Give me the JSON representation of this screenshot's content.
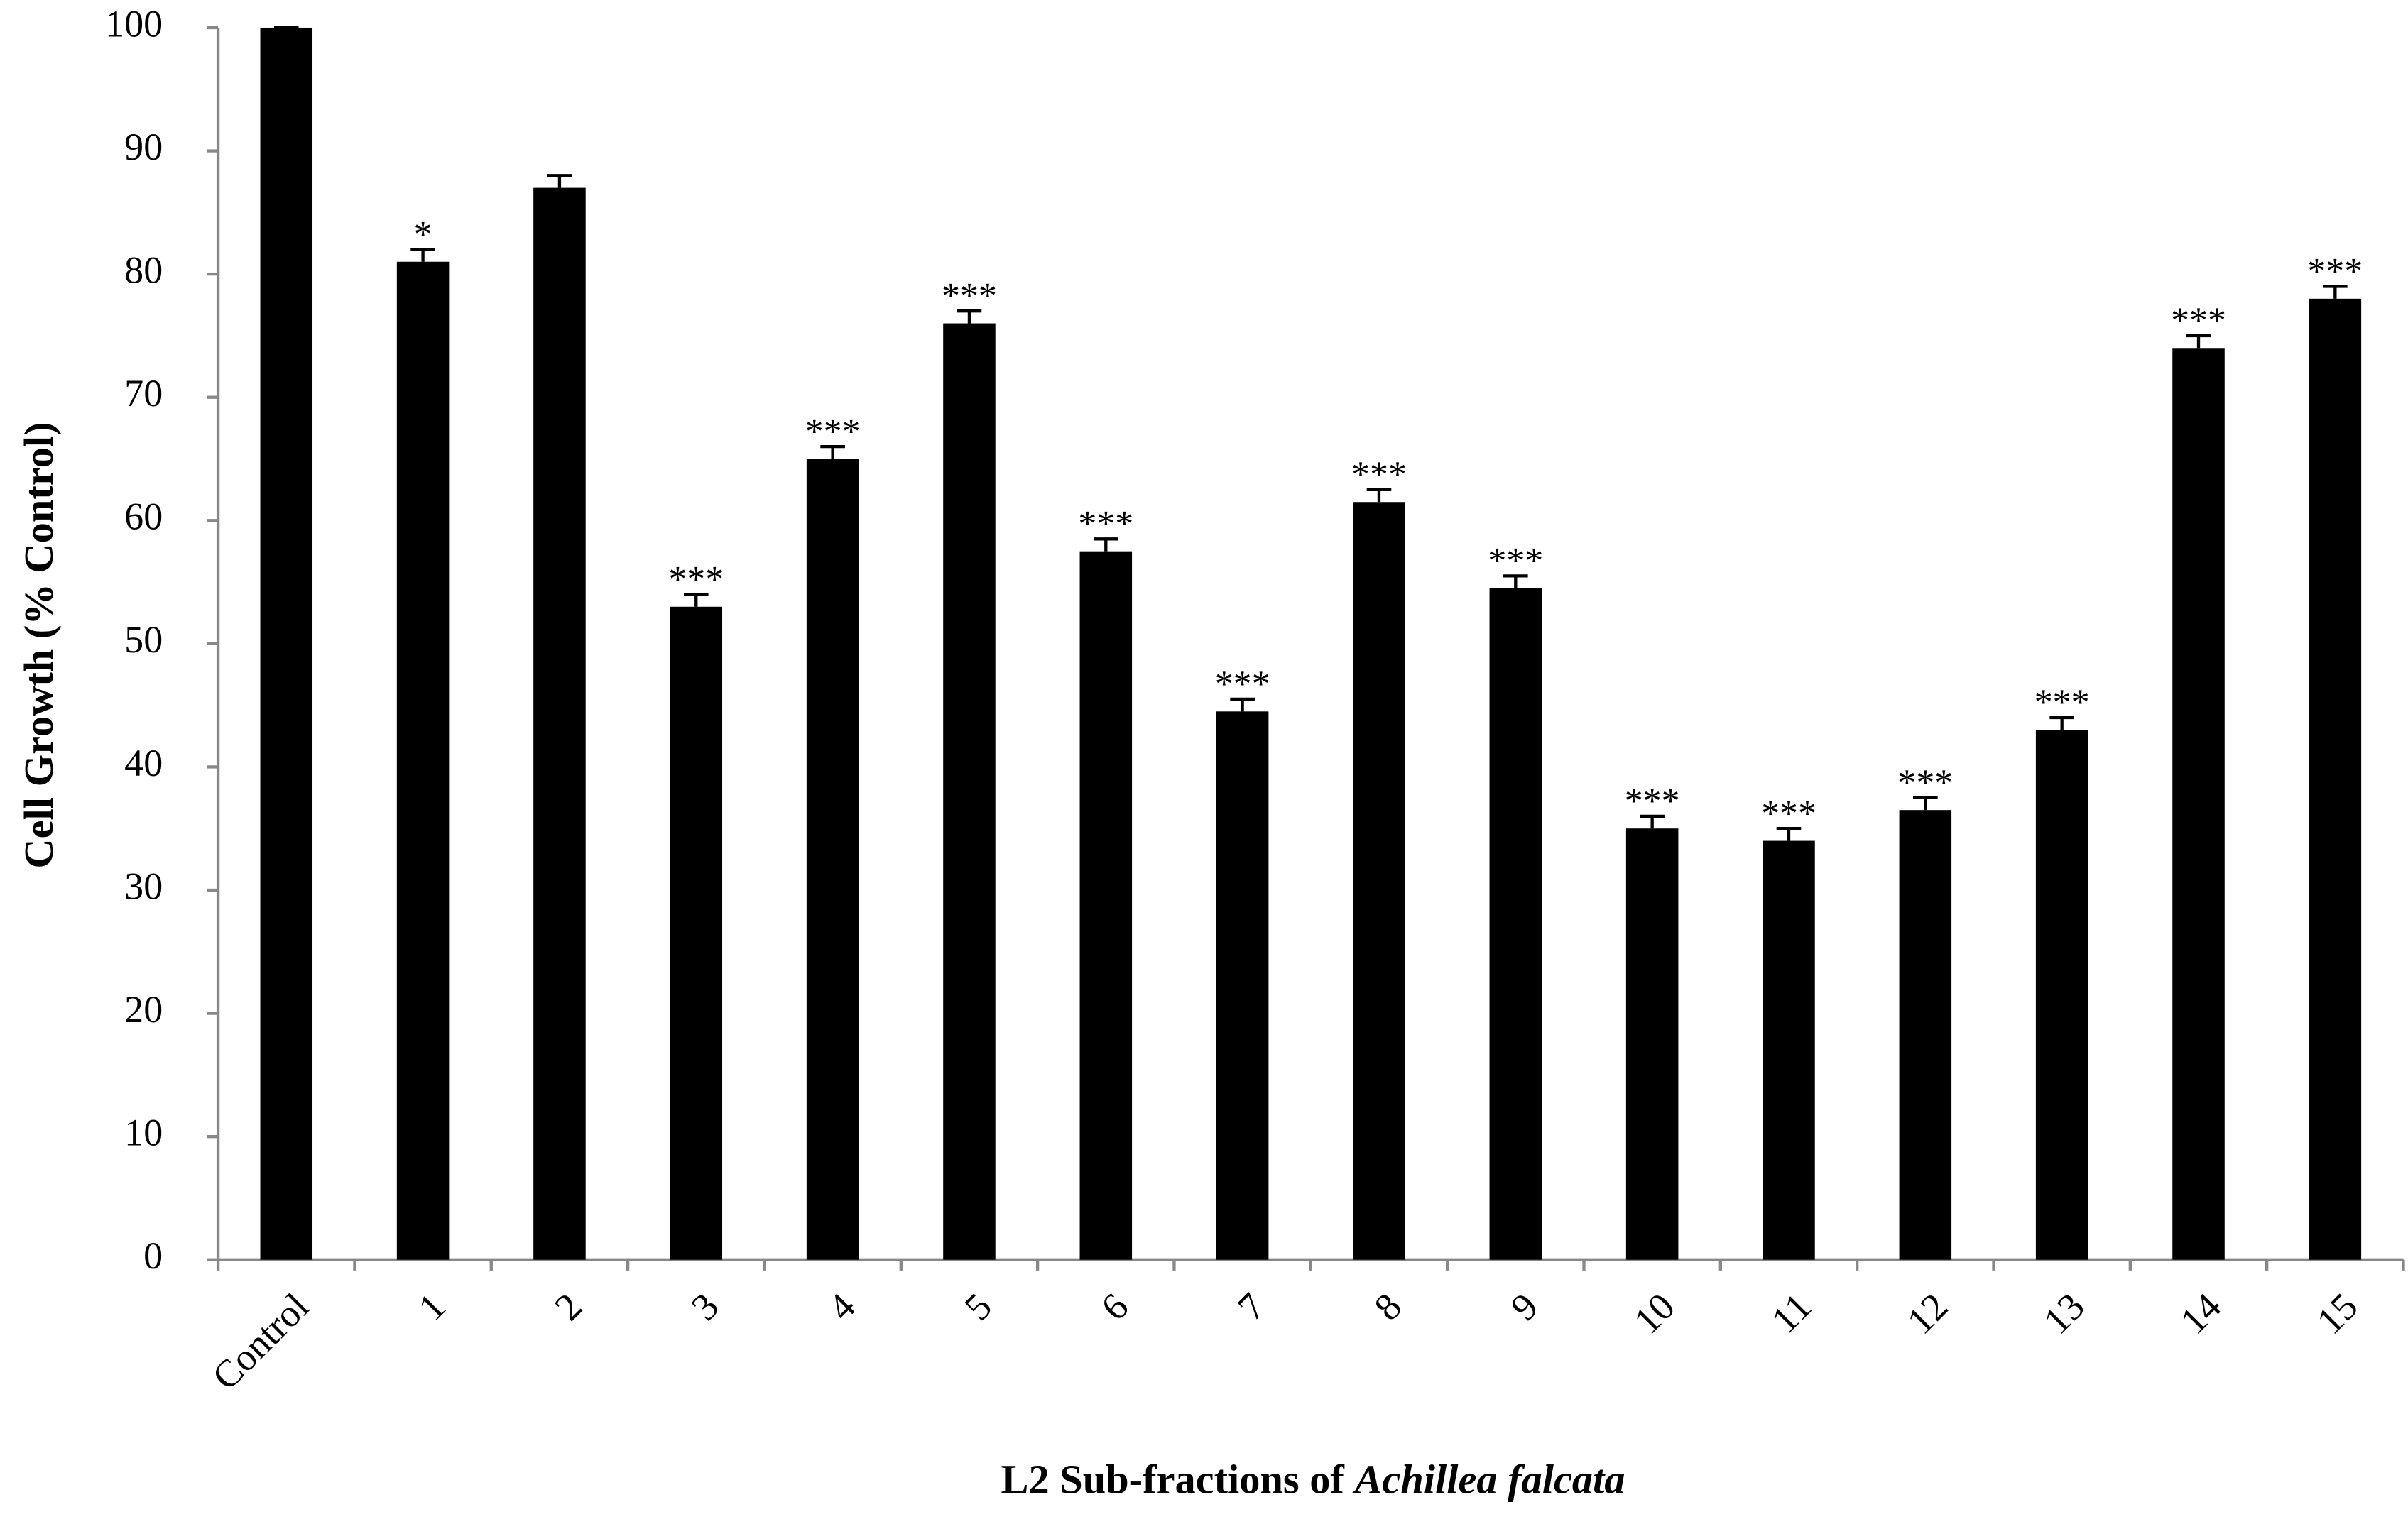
{
  "chart_data": {
    "type": "bar",
    "ylabel": "Cell  Growth (% Control)",
    "xlabel": "L2 Sub-fractions of",
    "xlabel_species": "Achillea falcata",
    "categories": [
      "Control",
      "1",
      "2",
      "3",
      "4",
      "5",
      "6",
      "7",
      "8",
      "9",
      "10",
      "11",
      "12",
      "13",
      "14",
      "15"
    ],
    "values": [
      100,
      81,
      87,
      53,
      65,
      76,
      57.5,
      44.5,
      61.5,
      54.5,
      35,
      34,
      36.5,
      43,
      74,
      78
    ],
    "errors": [
      0,
      1,
      1,
      1,
      1,
      1,
      1,
      1,
      1,
      1,
      1,
      1,
      1,
      1,
      1,
      1
    ],
    "annotations": [
      null,
      "*",
      null,
      "***",
      "***",
      "***",
      "***",
      "***",
      "***",
      "***",
      "***",
      "***",
      "***",
      "***",
      "***",
      "***"
    ],
    "color": "#000000",
    "ylim": [
      0,
      100
    ],
    "yticks": [
      0,
      10,
      20,
      30,
      40,
      50,
      60,
      70,
      80,
      90,
      100
    ]
  }
}
